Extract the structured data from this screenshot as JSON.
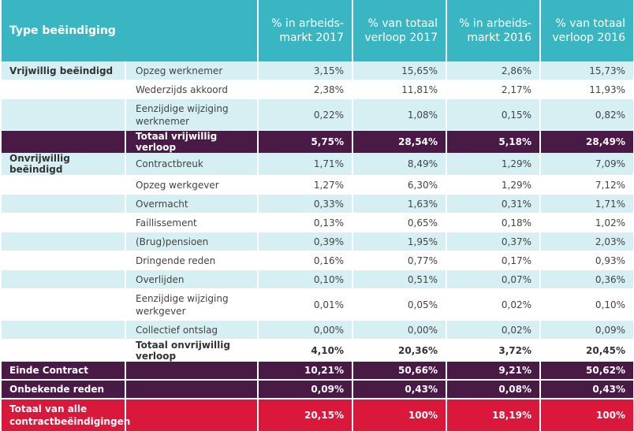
{
  "header": {
    "type": "Type beëindiging",
    "col1": "% in arbeids-\nmarkt 2017",
    "col2": "% van totaal\nverloop 2017",
    "col3": "% in arbeids-\nmarkt 2016",
    "col4": "% van totaal\nverloop 2016"
  },
  "vrijwillig": {
    "label": "Vrijwillig beëindigd",
    "rows": [
      {
        "name": "Opzeg werknemer",
        "v": [
          "3,15%",
          "15,65%",
          "2,86%",
          "15,73%"
        ]
      },
      {
        "name": "Wederzijds akkoord",
        "v": [
          "2,38%",
          "11,81%",
          "2,17%",
          "11,93%"
        ]
      },
      {
        "name": "Eenzijdige wijziging werknemer",
        "v": [
          "0,22%",
          "1,08%",
          "0,15%",
          "0,82%"
        ]
      }
    ],
    "total": {
      "name": "Totaal vrijwillig verloop",
      "v": [
        "5,75%",
        "28,54%",
        "5,18%",
        "28,49%"
      ]
    }
  },
  "onvrijwillig": {
    "label": "Onvrijwillig beëindigd",
    "rows": [
      {
        "name": "Contractbreuk",
        "v": [
          "1,71%",
          "8,49%",
          "1,29%",
          "7,09%"
        ]
      },
      {
        "name": "Opzeg werkgever",
        "v": [
          "1,27%",
          "6,30%",
          "1,29%",
          "7,12%"
        ]
      },
      {
        "name": "Overmacht",
        "v": [
          "0,33%",
          "1,63%",
          "0,31%",
          "1,71%"
        ]
      },
      {
        "name": "Faillissement",
        "v": [
          "0,13%",
          "0,65%",
          "0,18%",
          "1,02%"
        ]
      },
      {
        "name": "(Brug)pensioen",
        "v": [
          "0,39%",
          "1,95%",
          "0,37%",
          "2,03%"
        ]
      },
      {
        "name": "Dringende reden",
        "v": [
          "0,16%",
          "0,77%",
          "0,17%",
          "0,93%"
        ]
      },
      {
        "name": "Overlijden",
        "v": [
          "0,10%",
          "0,51%",
          "0,07%",
          "0,36%"
        ]
      },
      {
        "name": "Eenzijdige wijziging werkgever",
        "v": [
          "0,01%",
          "0,05%",
          "0,02%",
          "0,10%"
        ]
      },
      {
        "name": "Collectief ontslag",
        "v": [
          "0,00%",
          "0,00%",
          "0,02%",
          "0,09%"
        ]
      }
    ],
    "total": {
      "name": "Totaal onvrijwillig verloop",
      "v": [
        "4,10%",
        "20,36%",
        "3,72%",
        "20,45%"
      ]
    }
  },
  "einde": {
    "label": "Einde Contract",
    "v": [
      "10,21%",
      "50,66%",
      "9,21%",
      "50,62%"
    ]
  },
  "onbekend": {
    "label": "Onbekende reden",
    "v": [
      "0,09%",
      "0,43%",
      "0,08%",
      "0,43%"
    ]
  },
  "totaal": {
    "label": "Totaal van alle contractbeëindigingen",
    "v": [
      "20,15%",
      "100%",
      "18,19%",
      "100%"
    ]
  },
  "colors": {
    "header": "#3ab6c3",
    "alt_row": "#d6eff2",
    "dark": "#4a1a47",
    "red": "#d9183b"
  }
}
